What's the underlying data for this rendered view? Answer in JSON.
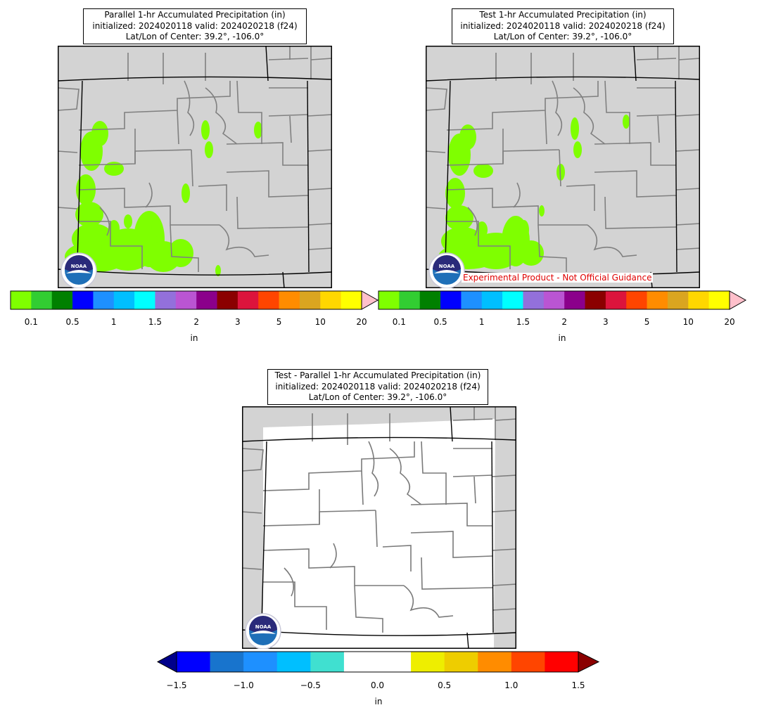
{
  "panels": [
    {
      "title_lines": [
        "Parallel 1-hr Accumulated Precipitation (in)",
        "initialized: 2024020118 valid: 2024020218 (f24)",
        "Lat/Lon of Center: 39.2°, -106.0°"
      ]
    },
    {
      "title_lines": [
        "Test 1-hr Accumulated Precipitation (in)",
        "initialized: 2024020118 valid: 2024020218 (f24)",
        "Lat/Lon of Center: 39.2°, -106.0°"
      ],
      "disclaimer": "Experimental Product - Not Official Guidance"
    },
    {
      "title_lines": [
        "Test - Parallel 1-hr Accumulated Precipitation (in)",
        "initialized: 2024020118 valid: 2024020218 (f24)",
        "Lat/Lon of Center: 39.2°, -106.0°"
      ]
    }
  ],
  "logo_text": "NOAA",
  "precip_colorbar": {
    "colors": [
      "#7fff00",
      "#32cd32",
      "#008000",
      "#0000ff",
      "#1e90ff",
      "#00bfff",
      "#00ffff",
      "#9370db",
      "#ba55d3",
      "#8b008b",
      "#8b0000",
      "#dc143c",
      "#ff4500",
      "#ff8c00",
      "#daa520",
      "#ffd700",
      "#ffff00"
    ],
    "extend_color": "#ffc0cb",
    "ticks": [
      "0.1",
      "0.5",
      "1",
      "1.5",
      "2",
      "3",
      "5",
      "10",
      "20"
    ],
    "unit": "in"
  },
  "diff_colorbar": {
    "colors": [
      "#0000ff",
      "#1874cd",
      "#1e90ff",
      "#00bfff",
      "#40e0d0",
      "#ffffff",
      "#ffffff",
      "#eeee00",
      "#eecd00",
      "#ff8c00",
      "#ff4500",
      "#ff0000"
    ],
    "extend_low_color": "#00008b",
    "extend_high_color": "#8b0000",
    "ticks": [
      "−1.5",
      "−1.0",
      "−0.5",
      "0.0",
      "0.5",
      "1.0",
      "1.5"
    ],
    "unit": "in"
  },
  "colors": {
    "land": "#d3d3d3",
    "precip": "#7fff00",
    "county_line": "#808080",
    "state_line": "#000000",
    "diff_zero": "#ffffff"
  }
}
